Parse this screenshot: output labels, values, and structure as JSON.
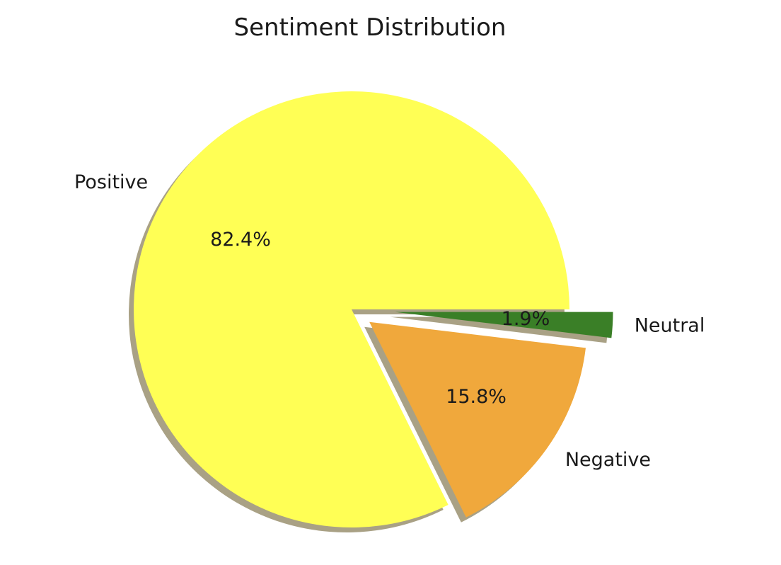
{
  "chart_data": {
    "type": "pie",
    "title": "Sentiment Distribution",
    "categories": [
      "Positive",
      "Negative",
      "Neutral"
    ],
    "values": [
      82.4,
      15.8,
      1.9
    ],
    "value_labels": [
      "82.4%",
      "15.8%",
      "1.9%"
    ],
    "colors": [
      "#ffff55",
      "#f0a83c",
      "#3a7f27"
    ],
    "explode": [
      0,
      0.1,
      0.2
    ],
    "start_angle_deg": 0,
    "direction": "counterclockwise",
    "shadow": true,
    "shadow_color": "#9a9070"
  }
}
